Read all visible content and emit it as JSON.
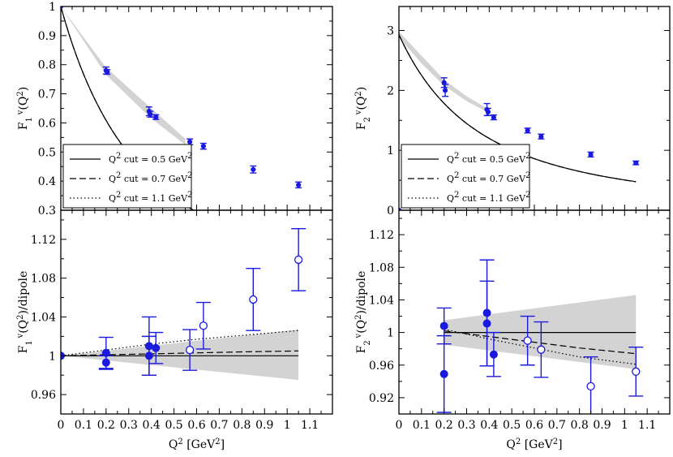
{
  "chart_data": [
    {
      "panel": "top-left",
      "type": "line",
      "ylabel_base": "F",
      "ylabel_sub": "1",
      "ylabel_sup": "v",
      "ylabel_tail": "(Q",
      "ylabel_tail_sup": "2",
      "ylabel_end": ")",
      "xlim": [
        0,
        1.2
      ],
      "ylim": [
        0.3,
        1.0
      ],
      "yticks": [
        "0.3",
        "0.4",
        "0.5",
        "0.6",
        "0.7",
        "0.8",
        "0.9",
        "1"
      ],
      "legend": {
        "placement": "bottom-left",
        "entries": [
          {
            "prefix": "Q",
            "sup": "2",
            "text": " cut = 0.5 GeV",
            "unit_sup": "2",
            "style": "solid"
          },
          {
            "prefix": "Q",
            "sup": "2",
            "text": " cut = 0.7 GeV",
            "unit_sup": "2",
            "style": "dashed"
          },
          {
            "prefix": "Q",
            "sup": "2",
            "text": " cut = 1.1 GeV",
            "unit_sup": "2",
            "style": "dotted"
          }
        ]
      },
      "points": [
        {
          "x": 0.0,
          "y": 1.0,
          "err": 0.0
        },
        {
          "x": 0.2,
          "y": 0.78,
          "err": 0.012
        },
        {
          "x": 0.205,
          "y": 0.775,
          "err": 0.008
        },
        {
          "x": 0.39,
          "y": 0.64,
          "err": 0.015
        },
        {
          "x": 0.395,
          "y": 0.63,
          "err": 0.01
        },
        {
          "x": 0.42,
          "y": 0.62,
          "err": 0.008
        },
        {
          "x": 0.57,
          "y": 0.535,
          "err": 0.01
        },
        {
          "x": 0.63,
          "y": 0.52,
          "err": 0.01
        },
        {
          "x": 0.85,
          "y": 0.44,
          "err": 0.012
        },
        {
          "x": 1.05,
          "y": 0.387,
          "err": 0.01
        }
      ],
      "curve": {
        "type": "dipole",
        "lambda2": 0.71,
        "norm": 1.0,
        "xmax": 1.05
      },
      "band": {
        "x": [
          0,
          0.2,
          0.4,
          0.55
        ],
        "lo": [
          1.0,
          0.765,
          0.615,
          0.525
        ],
        "hi": [
          1.0,
          0.79,
          0.65,
          0.545
        ]
      }
    },
    {
      "panel": "top-right",
      "type": "line",
      "ylabel_base": "F",
      "ylabel_sub": "2",
      "ylabel_sup": "v",
      "ylabel_tail": "(Q",
      "ylabel_tail_sup": "2",
      "ylabel_end": ")",
      "xlim": [
        0,
        1.2
      ],
      "ylim": [
        0,
        3.4
      ],
      "yticks": [
        "0",
        "1",
        "2",
        "3"
      ],
      "legend": {
        "placement": "bottom-left",
        "entries": [
          {
            "prefix": "Q",
            "sup": "2",
            "text": " cut = 0.5 GeV",
            "unit_sup": "2",
            "style": "solid"
          },
          {
            "prefix": "Q",
            "sup": "2",
            "text": " cut = 0.7 GeV",
            "unit_sup": "2",
            "style": "dashed"
          },
          {
            "prefix": "Q",
            "sup": "2",
            "text": " cut = 1.1 GeV",
            "unit_sup": "2",
            "style": "dotted"
          }
        ]
      },
      "points": [
        {
          "x": 0.0,
          "y": 0.0,
          "err": 0.0
        },
        {
          "x": 0.2,
          "y": 2.13,
          "err": 0.08
        },
        {
          "x": 0.205,
          "y": 2.0,
          "err": 0.1
        },
        {
          "x": 0.39,
          "y": 1.68,
          "err": 0.1
        },
        {
          "x": 0.395,
          "y": 1.64,
          "err": 0.06
        },
        {
          "x": 0.42,
          "y": 1.55,
          "err": 0.04
        },
        {
          "x": 0.57,
          "y": 1.33,
          "err": 0.04
        },
        {
          "x": 0.63,
          "y": 1.23,
          "err": 0.04
        },
        {
          "x": 0.85,
          "y": 0.93,
          "err": 0.04
        },
        {
          "x": 1.05,
          "y": 0.79,
          "err": 0.03
        }
      ],
      "curve": {
        "type": "dipole",
        "lambda2": 0.71,
        "norm": 2.93,
        "xmax": 1.05
      },
      "band": {
        "x": [
          0,
          0.1,
          0.2,
          0.3,
          0.4
        ],
        "lo": [
          2.88,
          2.45,
          2.08,
          1.82,
          1.62
        ],
        "hi": [
          2.98,
          2.58,
          2.18,
          1.9,
          1.68
        ]
      }
    },
    {
      "panel": "bottom-left",
      "type": "line",
      "ylabel_base": "F",
      "ylabel_sub": "1",
      "ylabel_sup": "v",
      "ylabel_tail": "(Q",
      "ylabel_tail_sup": "2",
      "ylabel_end": ")/dipole",
      "xlim": [
        0,
        1.2
      ],
      "ylim": [
        0.94,
        1.15
      ],
      "xticks": [
        "0",
        "0.1",
        "0.2",
        "0.3",
        "0.4",
        "0.5",
        "0.6",
        "0.7",
        "0.8",
        "0.9",
        "1",
        "1.1"
      ],
      "yticks": [
        "0.96",
        "1",
        "1.04",
        "1.08",
        "1.12"
      ],
      "xlabel_base": "Q",
      "xlabel_sup": "2",
      "xlabel_tail": " [GeV",
      "xlabel_tail_sup": "2",
      "xlabel_end": "]",
      "filled_points": [
        {
          "x": 0.0,
          "y": 1.0,
          "err": 0.0
        },
        {
          "x": 0.2,
          "y": 1.003,
          "err": 0.016
        },
        {
          "x": 0.2,
          "y": 0.993,
          "err": 0.007
        },
        {
          "x": 0.39,
          "y": 1.01,
          "err": 0.03
        },
        {
          "x": 0.39,
          "y": 1.0,
          "err": 0.02
        },
        {
          "x": 0.42,
          "y": 1.008,
          "err": 0.016
        }
      ],
      "open_points": [
        {
          "x": 0.57,
          "y": 1.006,
          "err": 0.021
        },
        {
          "x": 0.63,
          "y": 1.031,
          "err": 0.024
        },
        {
          "x": 0.85,
          "y": 1.058,
          "err": 0.032
        },
        {
          "x": 1.05,
          "y": 1.099,
          "err": 0.032
        }
      ],
      "lines": [
        {
          "style": "solid",
          "x": [
            0,
            1.05
          ],
          "y": [
            1.0,
            1.0
          ]
        },
        {
          "style": "dashed",
          "x": [
            0,
            0.2,
            0.4,
            0.6,
            0.8,
            1.05
          ],
          "y": [
            1.0,
            1.001,
            1.002,
            1.003,
            1.004,
            1.005
          ]
        },
        {
          "style": "dotted",
          "x": [
            0,
            0.2,
            0.4,
            0.6,
            0.8,
            1.05
          ],
          "y": [
            1.0,
            1.006,
            1.012,
            1.017,
            1.021,
            1.026
          ]
        }
      ],
      "band": {
        "x": [
          0,
          1.05
        ],
        "lo": [
          1.0,
          0.975
        ],
        "hi": [
          1.0,
          1.027
        ]
      }
    },
    {
      "panel": "bottom-right",
      "type": "line",
      "ylabel_base": "F",
      "ylabel_sub": "2",
      "ylabel_sup": "v",
      "ylabel_tail": "(Q",
      "ylabel_tail_sup": "2",
      "ylabel_end": ")/dipole",
      "xlim": [
        0,
        1.2
      ],
      "ylim": [
        0.9,
        1.15
      ],
      "xticks": [
        "0",
        "0.1",
        "0.2",
        "0.3",
        "0.4",
        "0.5",
        "0.6",
        "0.7",
        "0.8",
        "0.9",
        "1",
        "1.1"
      ],
      "yticks": [
        "0.92",
        "0.96",
        "1",
        "1.04",
        "1.08",
        "1.12"
      ],
      "xlabel_base": "Q",
      "xlabel_sup": "2",
      "xlabel_tail": " [GeV",
      "xlabel_tail_sup": "2",
      "xlabel_end": "]",
      "filled_points": [
        {
          "x": 0.2,
          "y": 1.008,
          "err": 0.022
        },
        {
          "x": 0.2,
          "y": 0.949,
          "err": 0.047
        },
        {
          "x": 0.39,
          "y": 1.024,
          "err": 0.065
        },
        {
          "x": 0.39,
          "y": 1.011,
          "err": 0.052
        },
        {
          "x": 0.42,
          "y": 0.973,
          "err": 0.027
        }
      ],
      "open_points": [
        {
          "x": 0.57,
          "y": 0.99,
          "err": 0.03
        },
        {
          "x": 0.63,
          "y": 0.979,
          "err": 0.034
        },
        {
          "x": 0.85,
          "y": 0.934,
          "err": 0.036
        },
        {
          "x": 1.05,
          "y": 0.952,
          "err": 0.03
        }
      ],
      "lines": [
        {
          "style": "solid",
          "x": [
            0.2,
            1.05
          ],
          "y": [
            1.0,
            1.0
          ]
        },
        {
          "style": "dashed",
          "x": [
            0.2,
            0.4,
            0.6,
            0.8,
            1.05
          ],
          "y": [
            1.002,
            0.995,
            0.988,
            0.981,
            0.974
          ]
        },
        {
          "style": "dotted",
          "x": [
            0.2,
            0.4,
            0.6,
            0.8,
            1.05
          ],
          "y": [
            1.004,
            0.992,
            0.981,
            0.97,
            0.961
          ]
        }
      ],
      "band": {
        "x": [
          0.2,
          1.05
        ],
        "lo": [
          0.985,
          0.955
        ],
        "hi": [
          1.015,
          1.046
        ]
      }
    }
  ]
}
